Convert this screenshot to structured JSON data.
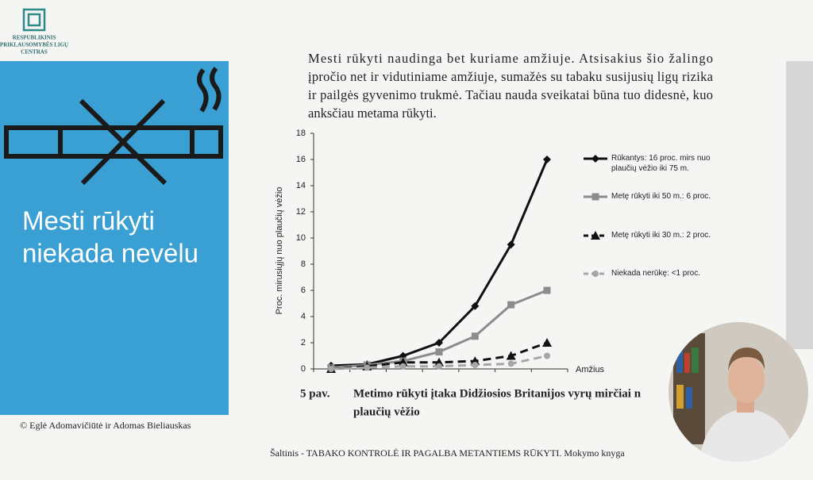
{
  "logo": {
    "lines": [
      "RESPUBLIKINIS",
      "PRIKLAUSOMYBĖS LIGŲ",
      "CENTRAS"
    ]
  },
  "sidebar": {
    "heading": [
      "Mesti rūkyti",
      "niekada nevėlu"
    ]
  },
  "copyright": "© Eglė Adomavičiūtė ir Adomas Bieliauskas",
  "paragraph": {
    "lines": [
      "Mesti rūkyti naudinga bet kuriame amžiuje. Atsisakius šio žalingo",
      "įpročio net ir vidutiniame amžiuje, sumažės su tabaku susijusių ligų rizika",
      "ir pailgės gyvenimo trukmė. Tačiau nauda sveikatai būna tuo didesnė, kuo",
      "anksčiau metama rūkyti."
    ]
  },
  "chart_data": {
    "type": "line",
    "x_label": "Amžius",
    "y_label": "Proc. mirusiųjų nuo plaučių vėžio",
    "categories": [
      null,
      null,
      null,
      null,
      null,
      null,
      null
    ],
    "ylim": [
      0,
      18
    ],
    "yticks": [
      0,
      2,
      4,
      6,
      8,
      10,
      12,
      14,
      16,
      18
    ],
    "series": [
      {
        "name": "Rūkantys: 16 proc. mirs nuo plaučių vėžio iki 75 m.",
        "color": "#111111",
        "marker": "diamond",
        "dash": false,
        "values": [
          0.25,
          0.35,
          1.0,
          2.0,
          4.8,
          9.5,
          16
        ]
      },
      {
        "name": "Metę rūkyti iki 50 m.: 6 proc.",
        "color": "#8c8c8c",
        "marker": "square",
        "dash": false,
        "values": [
          0.1,
          0.3,
          0.6,
          1.3,
          2.5,
          4.9,
          6.0
        ]
      },
      {
        "name": "Metę rūkyti iki 30 m.: 2 proc.",
        "color": "#111111",
        "marker": "triangle",
        "dash": true,
        "values": [
          0,
          0.2,
          0.5,
          0.5,
          0.6,
          1.0,
          2.0
        ]
      },
      {
        "name": "Niekada nerūkę: <1 proc.",
        "color": "#a6a6a6",
        "marker": "circle",
        "dash": true,
        "values": [
          0,
          0.1,
          0.2,
          0.2,
          0.3,
          0.4,
          1.0
        ]
      }
    ]
  },
  "caption": {
    "number": "5 pav.",
    "lines": [
      "Metimo rūkyti įtaka Didžiosios Britanijos vyrų mirčiai n",
      "plaučių vėžio"
    ]
  },
  "source": "Šaltinis - TABAKO KONTROLĖ IR PAGALBA METANTIEMS RŪKYTI. Mokymo knyga"
}
